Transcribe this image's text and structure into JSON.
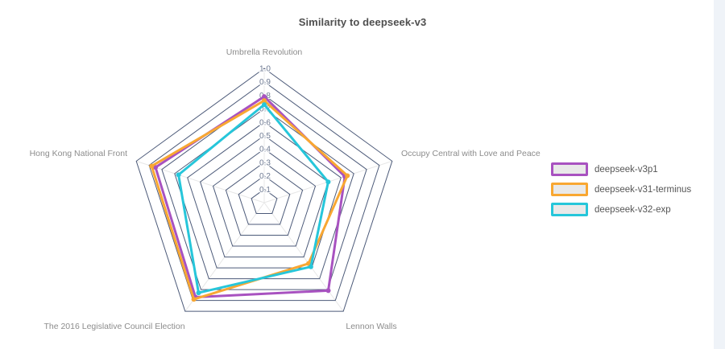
{
  "chart_data": {
    "type": "radar",
    "title": "Similarity to deepseek-v3",
    "categories": [
      "Umbrella Revolution",
      "Occupy Central with Love and Peace",
      "Lennon Walls",
      "The 2016 Legislative Council Election",
      "Hong Kong National Front"
    ],
    "series": [
      {
        "name": "deepseek-v3p1",
        "color": "#a852c0",
        "values": [
          0.79,
          0.63,
          0.81,
          0.87,
          0.85
        ]
      },
      {
        "name": "deepseek-v31-terminus",
        "color": "#f8a732",
        "values": [
          0.76,
          0.65,
          0.56,
          0.89,
          0.88
        ]
      },
      {
        "name": "deepseek-v32-exp",
        "color": "#26c6da",
        "values": [
          0.73,
          0.5,
          0.59,
          0.83,
          0.67
        ]
      }
    ],
    "radial_tick_labels": [
      "0.1",
      "0.2",
      "0.3",
      "0.4",
      "0.5",
      "0.6",
      "0.7",
      "0.8",
      "0.9",
      "1.0"
    ],
    "rlim": [
      0,
      1.0
    ],
    "grid": true,
    "legend_position": "right",
    "style": {
      "grid_color": "#4c5a79",
      "spoke_color": "#e7e7e7",
      "tick_label_color": "#6e7a92",
      "axis_label_color": "#8c8c8c",
      "title_color": "#4f4f4f",
      "legend_text_color": "#555555",
      "legend_swatch_fill": "#e9e9e9",
      "background": "#ffffff",
      "right_gutter_color": "#eff3f8"
    }
  }
}
